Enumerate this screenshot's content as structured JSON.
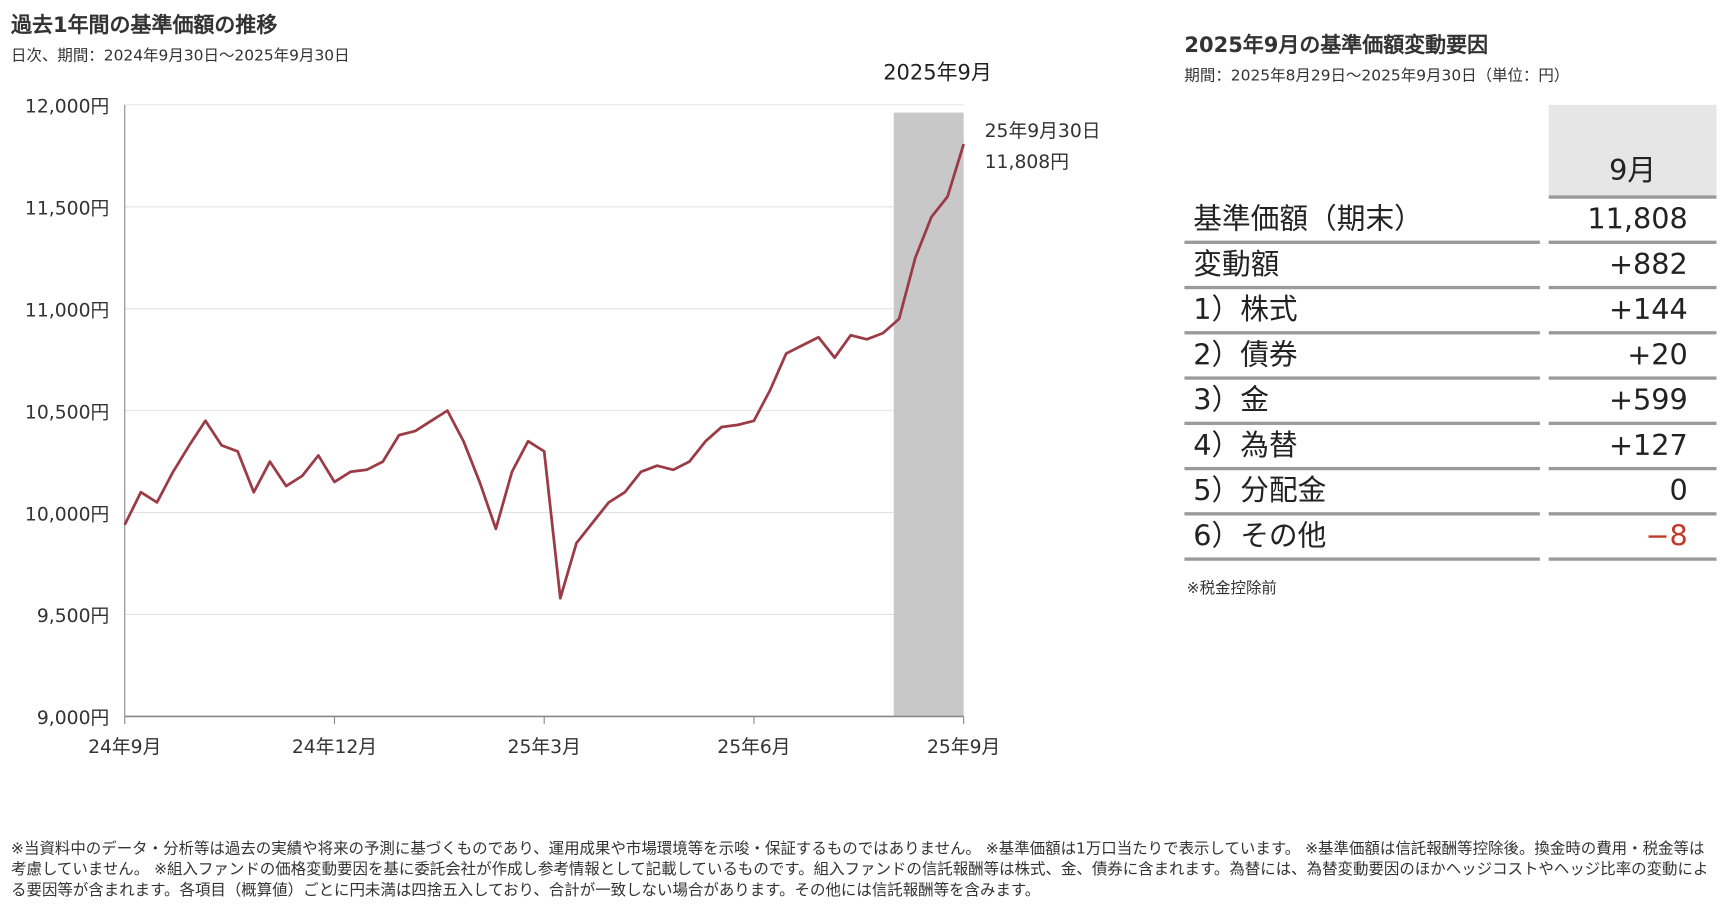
{
  "chart_data": {
    "type": "line",
    "title": "過去1年間の基準価額の推移",
    "subtitle": "日次、期間：2024年9月30日～2025年9月30日",
    "categories": [
      "24年9月",
      null,
      null,
      null,
      null,
      null,
      null,
      null,
      null,
      null,
      null,
      null,
      null,
      "24年12月",
      null,
      null,
      null,
      null,
      null,
      null,
      null,
      null,
      null,
      null,
      null,
      null,
      "25年3月",
      null,
      null,
      null,
      null,
      null,
      null,
      null,
      null,
      null,
      null,
      null,
      null,
      "25年6月",
      null,
      null,
      null,
      null,
      null,
      null,
      null,
      null,
      null,
      null,
      null,
      null,
      "25年9月"
    ],
    "values": [
      9940,
      10100,
      10050,
      10200,
      10330,
      10450,
      10330,
      10300,
      10100,
      10250,
      10130,
      10180,
      10280,
      10150,
      10200,
      10210,
      10250,
      10380,
      10400,
      10450,
      10500,
      10350,
      10150,
      9920,
      10200,
      10350,
      10300,
      9580,
      9850,
      9950,
      10050,
      10100,
      10200,
      10230,
      10210,
      10250,
      10350,
      10420,
      10430,
      10450,
      10600,
      10780,
      10820,
      10860,
      10760,
      10870,
      10850,
      10880,
      10950,
      11250,
      11450,
      11550,
      11808
    ],
    "color": "#9b3b45",
    "ylim": [
      9000,
      12000
    ],
    "yticks": [
      {
        "value": 9000,
        "label": "9,000円"
      },
      {
        "value": 9500,
        "label": "9,500円"
      },
      {
        "value": 10000,
        "label": "10,000円"
      },
      {
        "value": 10500,
        "label": "10,500円"
      },
      {
        "value": 11000,
        "label": "11,000円"
      },
      {
        "value": 11500,
        "label": "11,500円"
      },
      {
        "value": 12000,
        "label": "12,000円"
      }
    ],
    "grid": true,
    "highlight_label": "2025年9月",
    "annotation": {
      "date": "25年9月30日",
      "label": "11,808円"
    }
  },
  "table": {
    "title": "2025年9月の基準価額変動要因",
    "subtitle": "期間：2025年8月29日～2025年9月30日（単位：円）",
    "header": "9月",
    "rows": [
      [
        "基準価額（期末）",
        "11,808"
      ],
      [
        "変動額",
        "+882"
      ],
      [
        "1）株式",
        "+144"
      ],
      [
        "2）債券",
        "+20"
      ],
      [
        "3）金",
        "+599"
      ],
      [
        "4）為替",
        "+127"
      ],
      [
        "5）分配金",
        "0"
      ],
      [
        "6）その他",
        "−8"
      ]
    ],
    "note": "※税金控除前"
  },
  "footnote": "※当資料中のデータ・分析等は過去の実績や将来の予測に基づくものであり、運用成果や市場環境等を示唆・保証するものではありません。 ※基準価額は1万口当たりで表示しています。 ※基準価額は信託報酬等控除後。換金時の費用・税金等は考慮していません。 ※組入ファンドの価格変動要因を基に委託会社が作成し参考情報として記載しているものです。組入ファンドの信託報酬等は株式、金、債券に含まれます。為替には、為替変動要因のほかヘッジコストやヘッジ比率の変動による要因等が含まれます。各項目（概算値）ごとに円未満は四捨五入しており、合計が一致しない場合があります。その他には信託報酬等を含みます。"
}
